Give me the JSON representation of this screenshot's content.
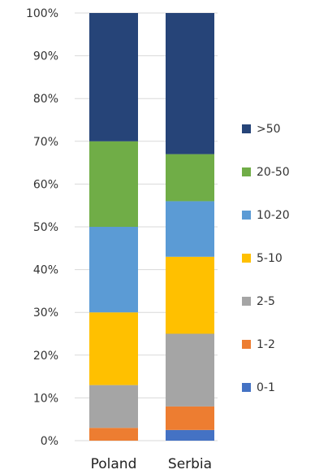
{
  "chart_data": {
    "type": "bar",
    "stacked": true,
    "percent": true,
    "categories": [
      "Poland",
      "Serbia"
    ],
    "ylim": [
      0,
      100
    ],
    "yticks": [
      "0%",
      "10%",
      "20%",
      "30%",
      "40%",
      "50%",
      "60%",
      "70%",
      "80%",
      "90%",
      "100%"
    ],
    "grid": true,
    "legend_position": "right",
    "series": [
      {
        "name": "0-1",
        "color": "#4472C4",
        "values": [
          0,
          2.5
        ]
      },
      {
        "name": "1-2",
        "color": "#ED7D31",
        "values": [
          3,
          5.5
        ]
      },
      {
        "name": "2-5",
        "color": "#A5A5A5",
        "values": [
          10,
          17
        ]
      },
      {
        "name": "5-10",
        "color": "#FFC000",
        "values": [
          17,
          18
        ]
      },
      {
        "name": "10-20",
        "color": "#5B9BD5",
        "values": [
          20,
          13
        ]
      },
      {
        "name": "20-50",
        "color": "#70AD47",
        "values": [
          20,
          11
        ]
      },
      {
        "name": ">50",
        "color": "#264478",
        "values": [
          30,
          33
        ]
      }
    ]
  }
}
